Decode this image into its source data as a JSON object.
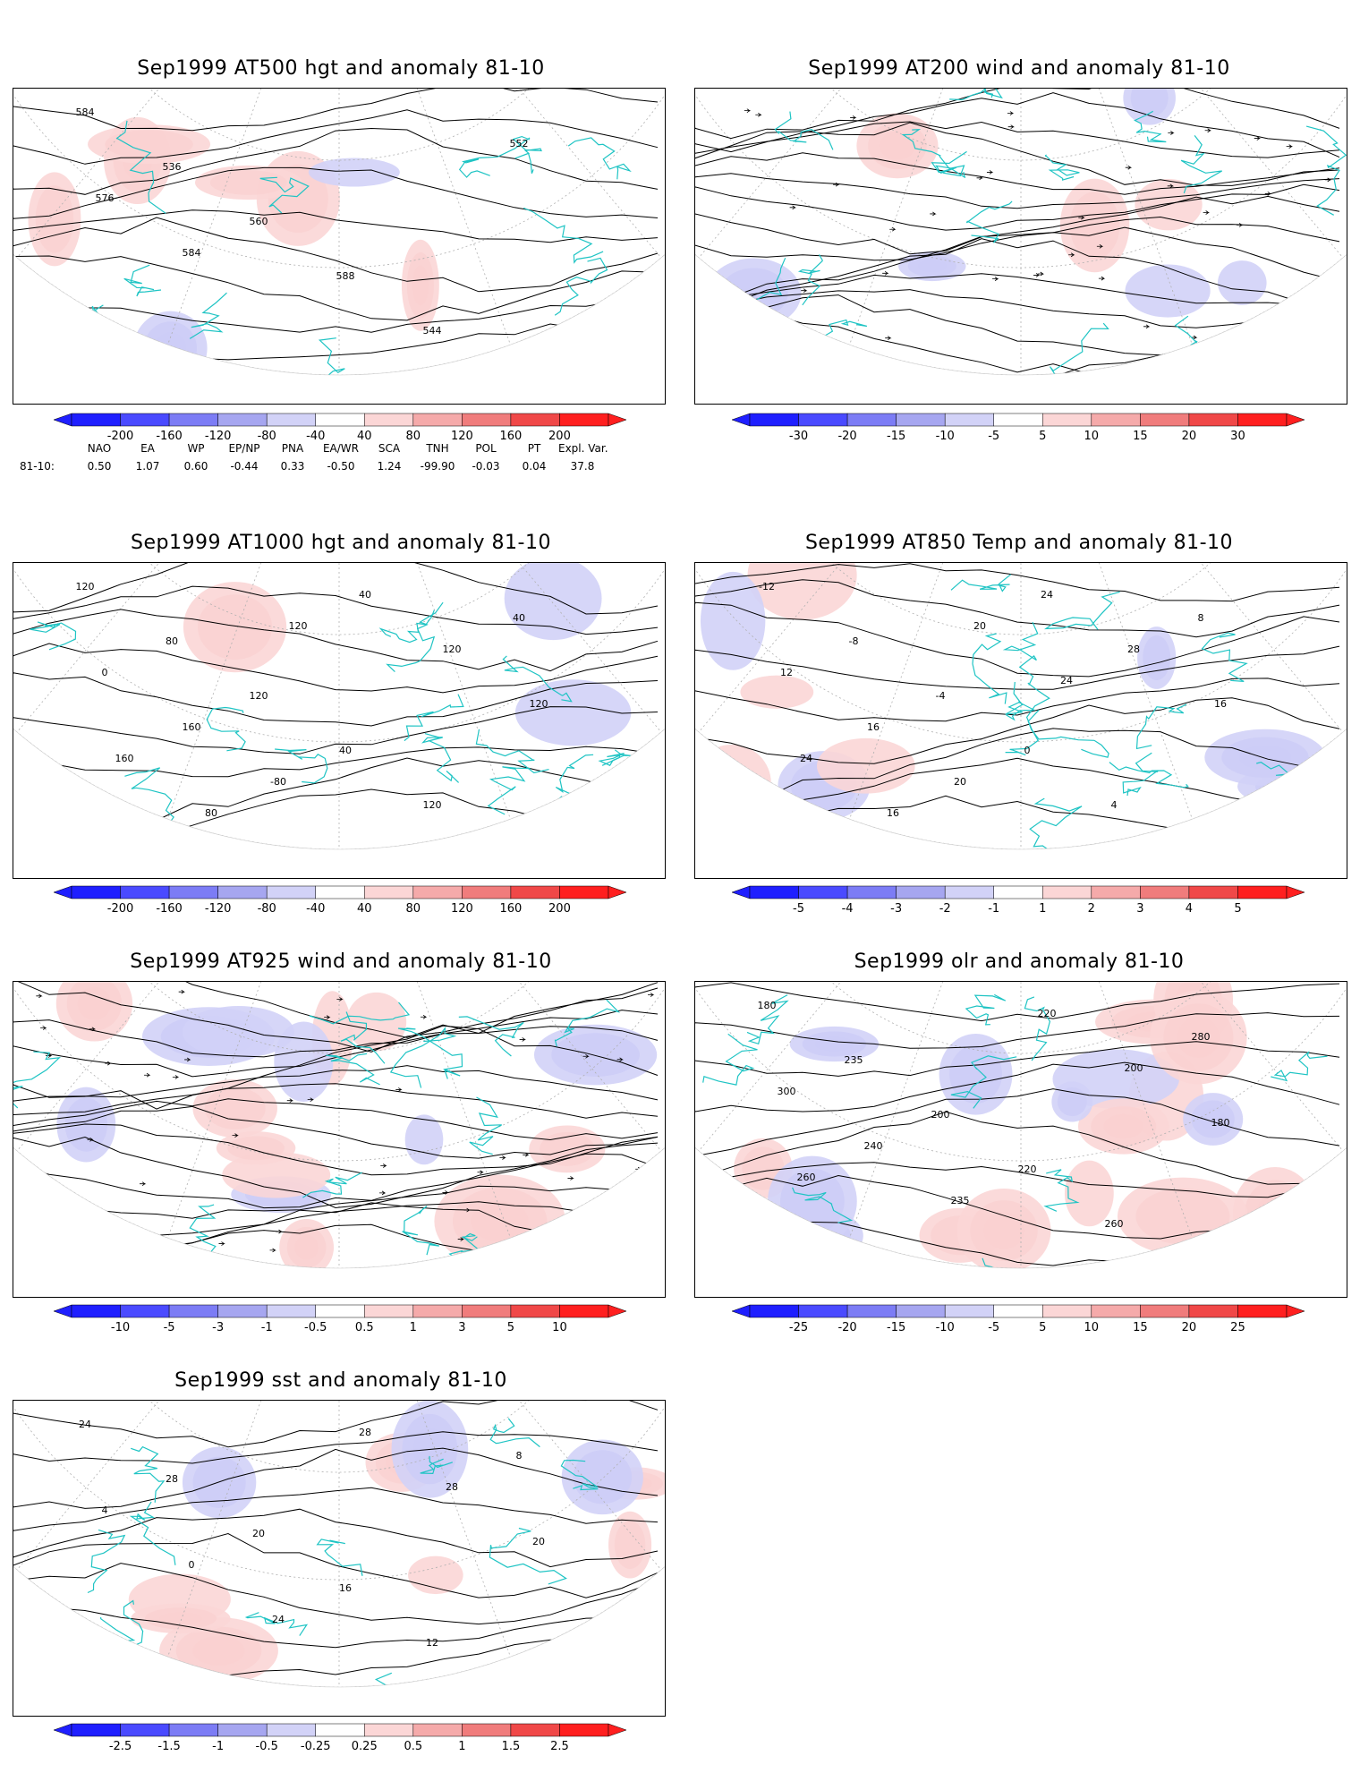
{
  "panels": [
    {
      "id": "p1",
      "title": "Sep1999 AT500 hgt and anomaly 81-10",
      "contours": [
        "584",
        "536",
        "560",
        "588",
        "544",
        "552",
        "576",
        "584"
      ],
      "colorbar": {
        "labels": [
          "-200",
          "-160",
          "-120",
          "-80",
          "-40",
          "40",
          "80",
          "120",
          "160",
          "200"
        ]
      }
    },
    {
      "id": "p2",
      "title": "Sep1999 AT200 wind and anomaly 81-10",
      "contours": [],
      "colorbar": {
        "labels": [
          "-30",
          "-20",
          "-15",
          "-10",
          "-5",
          "5",
          "10",
          "15",
          "20",
          "30"
        ]
      }
    },
    {
      "id": "p3",
      "title": "Sep1999 AT1000 hgt and anomaly 81-10",
      "contours": [
        "120",
        "80",
        "120",
        "40",
        "120",
        "40",
        "0",
        "160",
        "-80",
        "40",
        "120",
        "120",
        "160",
        "80",
        "120"
      ],
      "colorbar": {
        "labels": [
          "-200",
          "-160",
          "-120",
          "-80",
          "-40",
          "40",
          "80",
          "120",
          "160",
          "200"
        ]
      }
    },
    {
      "id": "p4",
      "title": "Sep1999 AT850 Temp and anomaly 81-10",
      "contours": [
        "-12",
        "-8",
        "-4",
        "0",
        "4",
        "8",
        "12",
        "16",
        "20",
        "24",
        "28",
        "16",
        "24",
        "16",
        "20",
        "24"
      ],
      "colorbar": {
        "labels": [
          "-5",
          "-4",
          "-3",
          "-2",
          "-1",
          "1",
          "2",
          "3",
          "4",
          "5"
        ]
      }
    },
    {
      "id": "p5",
      "title": "Sep1999 AT925 wind and anomaly 81-10",
      "contours": [],
      "colorbar": {
        "labels": [
          "-10",
          "-5",
          "-3",
          "-1",
          "-0.5",
          "0.5",
          "1",
          "3",
          "5",
          "10"
        ]
      }
    },
    {
      "id": "p6",
      "title": "Sep1999 olr and anomaly 81-10",
      "contours": [
        "180",
        "235",
        "200",
        "220",
        "260",
        "280",
        "300",
        "240",
        "235",
        "220",
        "200",
        "180",
        "260"
      ],
      "colorbar": {
        "labels": [
          "-25",
          "-20",
          "-15",
          "-10",
          "-5",
          "5",
          "10",
          "15",
          "20",
          "25"
        ]
      }
    },
    {
      "id": "p7",
      "title": "Sep1999 sst and anomaly 81-10",
      "contours": [
        "24",
        "28",
        "20",
        "16",
        "12",
        "8",
        "4",
        "0",
        "24",
        "28",
        "28",
        "20"
      ],
      "colorbar": {
        "labels": [
          "-2.5",
          "-1.5",
          "-1",
          "-0.5",
          "-0.25",
          "0.25",
          "0.5",
          "1",
          "1.5",
          "2.5"
        ]
      }
    }
  ],
  "indices": {
    "headers": [
      "NAO",
      "EA",
      "WP",
      "EP/NP",
      "PNA",
      "EA/WR",
      "SCA",
      "TNH",
      "POL",
      "PT",
      "Expl. Var."
    ],
    "row_label": "81-10:",
    "values": [
      "0.50",
      "1.07",
      "0.60",
      "-0.44",
      "0.33",
      "-0.50",
      "1.24",
      "-99.90",
      "-0.03",
      "0.04",
      "37.8"
    ]
  },
  "colors": {
    "blues": [
      "#1f1fff",
      "#4a4aff",
      "#7c7cf5",
      "#a6a6f0",
      "#d2d2f7"
    ],
    "reds": [
      "#fbd6d6",
      "#f5aaaa",
      "#f07c7c",
      "#f04848",
      "#ff1f1f"
    ],
    "coast": "#1fc4c4",
    "grid": "#b0b0b0"
  }
}
